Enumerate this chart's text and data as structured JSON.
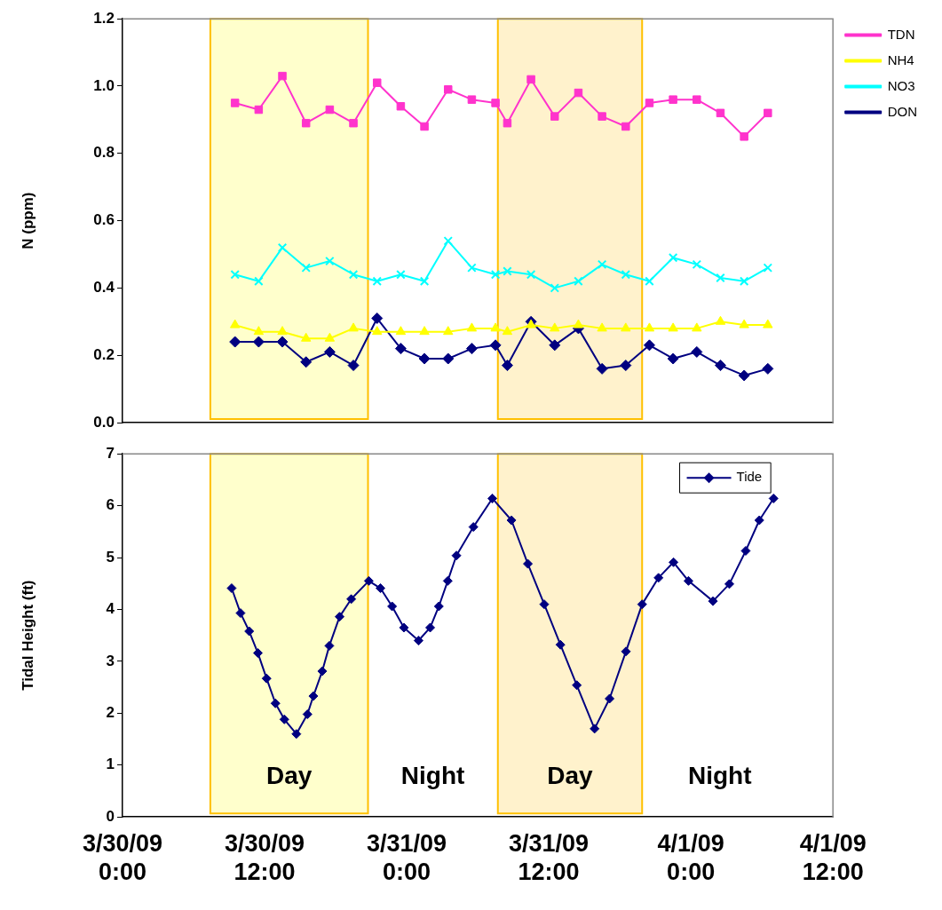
{
  "chart_data": [
    {
      "type": "line",
      "ylabel": "N (ppm)",
      "xlim": [
        "--03-30T00:00",
        "--04-01T12:00"
      ],
      "ylim": [
        0,
        1.2
      ],
      "yticks": [
        {
          "value": 0,
          "label": "0.0"
        },
        {
          "value": 0.2,
          "label": "0.2"
        },
        {
          "value": 0.4,
          "label": "0.4"
        },
        {
          "value": 0.6,
          "label": "0.6"
        },
        {
          "value": 0.8,
          "label": "0.8"
        },
        {
          "value": 1,
          "label": "1.0"
        },
        {
          "value": 1.2,
          "label": "1.2"
        }
      ],
      "tick_labels": "y",
      "legend": "right",
      "x": [
        "--03-30T09:30",
        "--03-30T11:30",
        "--03-30T13:30",
        "--03-30T15:30",
        "--03-30T17:30",
        "--03-30T19:30",
        "--03-30T21:30",
        "--03-30T23:30",
        "--03-31T01:30",
        "--03-31T03:30",
        "--03-31T05:30",
        "--03-31T07:30",
        "--03-31T08:30",
        "--03-31T10:30",
        "--03-31T12:30",
        "--03-31T14:30",
        "--03-31T16:30",
        "--03-31T18:30",
        "--03-31T20:30",
        "--03-31T22:30",
        "--04-01T00:30",
        "--04-01T02:30",
        "--04-01T04:30",
        "--04-01T06:30"
      ],
      "bands": [
        {
          "axis": "x",
          "from": "--03-30T07:25",
          "to": "--03-30T20:44",
          "color": "#ffffcc"
        },
        {
          "axis": "x",
          "from": "--03-31T07:42",
          "to": "--03-31T19:53",
          "color": "#fff2cc"
        }
      ],
      "series": [
        {
          "name": "TDN",
          "color": "#ff33cc",
          "marker": "square",
          "values": [
            0.95,
            0.93,
            1.03,
            0.89,
            0.93,
            0.89,
            1.01,
            0.94,
            0.88,
            0.99,
            0.96,
            0.95,
            0.89,
            1.02,
            0.91,
            0.98,
            0.91,
            0.88,
            0.95,
            0.96,
            0.96,
            0.92,
            0.85,
            0.92
          ]
        },
        {
          "name": "NH4",
          "color": "#ffff00",
          "marker": "triangle",
          "values": [
            0.29,
            0.27,
            0.27,
            0.25,
            0.25,
            0.28,
            0.27,
            0.27,
            0.27,
            0.27,
            0.28,
            0.28,
            0.27,
            0.29,
            0.28,
            0.29,
            0.28,
            0.28,
            0.28,
            0.28,
            0.28,
            0.3,
            0.29,
            0.29
          ]
        },
        {
          "name": "NO3",
          "color": "#00ffff",
          "marker": "cross",
          "values": [
            0.44,
            0.42,
            0.52,
            0.46,
            0.48,
            0.44,
            0.42,
            0.44,
            0.42,
            0.54,
            0.46,
            0.44,
            0.45,
            0.44,
            0.4,
            0.42,
            0.47,
            0.44,
            0.42,
            0.49,
            0.47,
            0.43,
            0.42,
            0.46
          ]
        },
        {
          "name": "DON",
          "color": "#000080",
          "marker": "diamond",
          "values": [
            0.24,
            0.24,
            0.24,
            0.18,
            0.21,
            0.17,
            0.31,
            0.22,
            0.19,
            0.19,
            0.22,
            0.23,
            0.17,
            0.3,
            0.23,
            0.28,
            0.16,
            0.17,
            0.23,
            0.19,
            0.21,
            0.17,
            0.14,
            0.16
          ]
        }
      ]
    },
    {
      "type": "line",
      "ylabel": "Tidal Height (ft)",
      "xlim": [
        "--03-30T00:00",
        "--04-01T12:00"
      ],
      "ylim": [
        0,
        7
      ],
      "yticks": [
        0,
        1,
        2,
        3,
        4,
        5,
        6,
        7
      ],
      "xticks": [
        {
          "value": "--03-30T00:00",
          "label": "3/30/09\n0:00"
        },
        {
          "value": "--03-30T12:00",
          "label": "3/30/09\n12:00"
        },
        {
          "value": "--03-31T00:00",
          "label": "3/31/09\n0:00"
        },
        {
          "value": "--03-31T12:00",
          "label": "3/31/09\n12:00"
        },
        {
          "value": "--04-01T00:00",
          "label": "4/1/09\n0:00"
        },
        {
          "value": "--04-01T12:00",
          "label": "4/1/09\n12:00"
        }
      ],
      "legend": "top right",
      "bands": [
        {
          "axis": "x",
          "from": "--03-30T07:25",
          "to": "--03-30T20:44",
          "label": "Day",
          "color": "#ffffcc"
        },
        {
          "axis": "x",
          "from": "--03-31T07:42",
          "to": "--03-31T19:53",
          "label": "Day",
          "color": "#fff2cc"
        }
      ],
      "annotations": [
        "Night",
        "Night"
      ],
      "x": [
        "--03-30T09:13",
        "--03-30T09:58",
        "--03-30T10:42",
        "--03-30T11:26",
        "--03-30T12:10",
        "--03-30T12:55",
        "--03-30T13:40",
        "--03-30T14:41",
        "--03-30T15:37",
        "--03-30T16:07",
        "--03-30T16:52",
        "--03-30T17:28",
        "--03-30T18:20",
        "--03-30T19:19",
        "--03-30T20:48",
        "--03-30T21:47",
        "--03-30T22:46",
        "--03-30T23:46",
        "--03-31T01:00",
        "--03-31T01:59",
        "--03-31T02:43",
        "--03-31T03:28",
        "--03-31T04:12",
        "--03-31T05:38",
        "--03-31T07:14",
        "--03-31T08:51",
        "--03-31T10:14",
        "--03-31T11:37",
        "--03-31T12:59",
        "--03-31T14:22",
        "--03-31T15:52",
        "--03-31T17:08",
        "--03-31T18:31",
        "--03-31T19:53",
        "--03-31T21:16",
        "--03-31T22:32",
        "--03-31T23:48",
        "--04-01T01:52",
        "--04-01T03:15",
        "--04-01T04:38",
        "--04-01T05:47",
        "--04-01T06:59"
      ],
      "series": [
        {
          "name": "Tide",
          "color": "#000080",
          "marker": "diamond",
          "values": [
            4.41,
            3.93,
            3.58,
            3.16,
            2.67,
            2.19,
            1.88,
            1.6,
            1.98,
            2.33,
            2.81,
            3.3,
            3.86,
            4.2,
            4.55,
            4.41,
            4.06,
            3.65,
            3.4,
            3.65,
            4.06,
            4.55,
            5.04,
            5.59,
            6.14,
            5.72,
            4.88,
            4.1,
            3.32,
            2.54,
            1.7,
            2.28,
            3.19,
            4.1,
            4.61,
            4.91,
            4.55,
            4.16,
            4.49,
            5.13,
            5.72,
            6.14
          ]
        }
      ]
    }
  ]
}
